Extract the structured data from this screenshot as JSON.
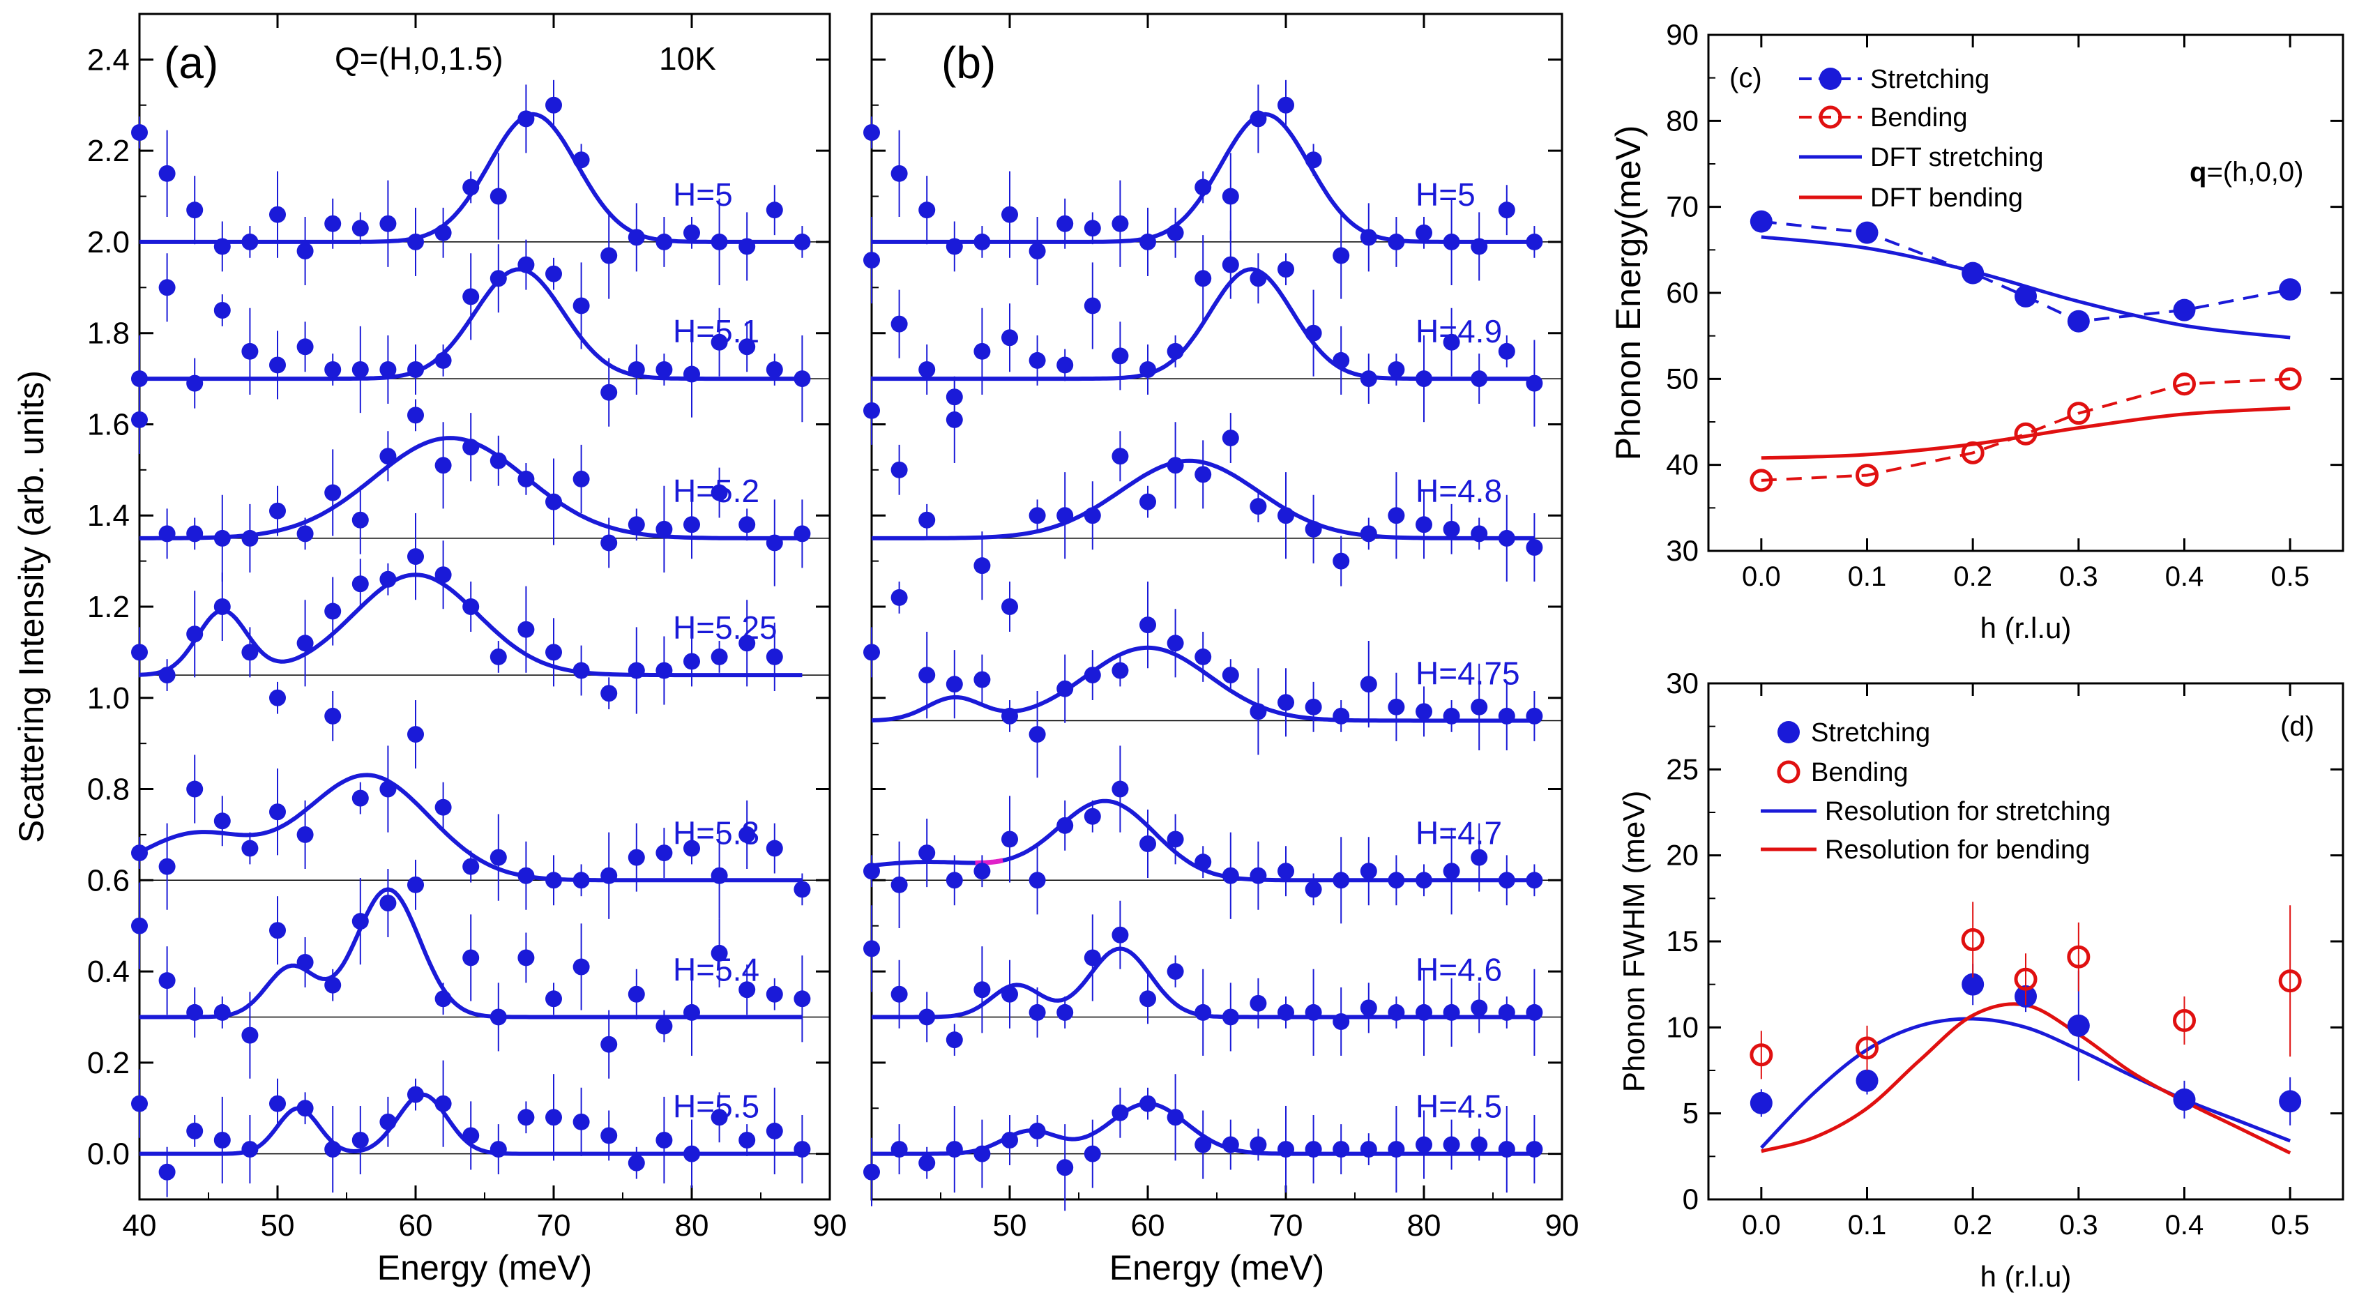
{
  "chart_data": [
    {
      "panel": "(a)",
      "type": "scatter",
      "title": "Q=(H,0,1.5)",
      "temperature": "10K",
      "xlabel": "Energy (meV)",
      "ylabel": "Scattering Intensity (arb. units)",
      "xlim": [
        40,
        90
      ],
      "ylim": [
        -0.1,
        2.5
      ],
      "xticks": [
        "40",
        "50",
        "60",
        "70",
        "80",
        "90"
      ],
      "yticks": [
        "0.0",
        "0.2",
        "0.4",
        "0.6",
        "0.8",
        "1.0",
        "1.2",
        "1.4",
        "1.6",
        "1.8",
        "2.0",
        "2.2",
        "2.4"
      ],
      "x": [
        40,
        42,
        44,
        46,
        48,
        50,
        52,
        54,
        56,
        58,
        60,
        62,
        64,
        66,
        68,
        70,
        72,
        74,
        76,
        78,
        80,
        82,
        84,
        86,
        88
      ],
      "series": [
        {
          "name": "H=5",
          "label": "H=5",
          "baseline": 2.0,
          "values": [
            2.24,
            2.15,
            2.07,
            1.99,
            2.0,
            2.06,
            1.98,
            2.04,
            2.03,
            2.04,
            2.0,
            2.02,
            2.12,
            2.1,
            2.27,
            2.3,
            2.18,
            1.97,
            2.01,
            2.0,
            2.02,
            2.0,
            1.99,
            2.07,
            2.0
          ],
          "fit": [
            {
              "center": 68.5,
              "amp": 0.28,
              "sigma": 3.2
            }
          ]
        },
        {
          "name": "H=5.1",
          "label": "H=5.1",
          "baseline": 1.7,
          "values": [
            1.7,
            1.9,
            1.69,
            1.85,
            1.76,
            1.73,
            1.77,
            1.72,
            1.72,
            1.72,
            1.72,
            1.74,
            1.88,
            1.92,
            1.95,
            1.93,
            1.86,
            1.67,
            1.72,
            1.72,
            1.71,
            1.78,
            1.77,
            1.72,
            1.7
          ],
          "fit": [
            {
              "center": 67.5,
              "amp": 0.24,
              "sigma": 3.2
            }
          ]
        },
        {
          "name": "H=5.2",
          "label": "H=5.2",
          "baseline": 1.35,
          "values": [
            1.61,
            1.36,
            1.36,
            1.35,
            1.35,
            1.41,
            1.36,
            1.45,
            1.39,
            1.53,
            1.62,
            1.51,
            1.55,
            1.52,
            1.48,
            1.43,
            1.48,
            1.34,
            1.38,
            1.37,
            1.38,
            1.45,
            1.38,
            1.34,
            1.36
          ],
          "fit": [
            {
              "center": 62.5,
              "amp": 0.22,
              "sigma": 5.5
            }
          ]
        },
        {
          "name": "H=5.25",
          "label": "H=5.25",
          "baseline": 1.05,
          "values": [
            1.1,
            1.05,
            1.14,
            1.2,
            1.1,
            1.0,
            1.12,
            1.19,
            1.25,
            1.26,
            1.31,
            1.27,
            1.2,
            1.09,
            1.15,
            1.1,
            1.06,
            1.01,
            1.06,
            1.06,
            1.08,
            1.09,
            1.12,
            1.09,
            null
          ],
          "fit": [
            {
              "center": 46,
              "amp": 0.14,
              "sigma": 1.8
            },
            {
              "center": 60,
              "amp": 0.22,
              "sigma": 4.5
            }
          ]
        },
        {
          "name": "H=5.3",
          "label": "H=5.3",
          "baseline": 0.6,
          "values": [
            0.66,
            0.63,
            0.8,
            0.73,
            0.67,
            0.75,
            0.7,
            0.96,
            0.78,
            0.8,
            0.92,
            0.76,
            0.63,
            0.65,
            0.61,
            0.6,
            0.6,
            0.61,
            0.65,
            0.66,
            0.67,
            0.61,
            0.7,
            0.67,
            0.58
          ],
          "fit": [
            {
              "center": 56.5,
              "amp": 0.23,
              "sigma": 4.5
            },
            {
              "center": 44,
              "amp": 0.1,
              "sigma": 4
            }
          ]
        },
        {
          "name": "H=5.4",
          "label": "H=5.4",
          "baseline": 0.3,
          "values": [
            0.5,
            0.38,
            0.31,
            0.31,
            0.26,
            0.49,
            0.42,
            0.37,
            0.51,
            0.55,
            0.59,
            0.34,
            0.43,
            0.3,
            0.43,
            0.34,
            0.41,
            0.24,
            0.35,
            0.28,
            0.31,
            0.44,
            0.36,
            0.35,
            0.34
          ],
          "fit": [
            {
              "center": 51,
              "amp": 0.11,
              "sigma": 1.8
            },
            {
              "center": 58,
              "amp": 0.28,
              "sigma": 2.3
            }
          ]
        },
        {
          "name": "H=5.5",
          "label": "H=5.5",
          "baseline": 0.0,
          "values": [
            0.11,
            -0.04,
            0.05,
            0.03,
            0.01,
            0.11,
            0.1,
            0.01,
            0.03,
            0.07,
            0.13,
            0.11,
            0.04,
            0.01,
            0.08,
            0.08,
            0.07,
            0.04,
            -0.02,
            0.03,
            0.0,
            0.08,
            0.03,
            0.05,
            0.01
          ],
          "fit": [
            {
              "center": 51.5,
              "amp": 0.1,
              "sigma": 1.5
            },
            {
              "center": 60.5,
              "amp": 0.13,
              "sigma": 1.8
            }
          ]
        }
      ]
    },
    {
      "panel": "(b)",
      "type": "scatter",
      "xlabel": "Energy (meV)",
      "xlim": [
        40,
        90
      ],
      "ylim": [
        -0.1,
        2.5
      ],
      "xticks": [
        "50",
        "60",
        "70",
        "80",
        "90"
      ],
      "x": [
        40,
        42,
        44,
        46,
        48,
        50,
        52,
        54,
        56,
        58,
        60,
        62,
        64,
        66,
        68,
        70,
        72,
        74,
        76,
        78,
        80,
        82,
        84,
        86,
        88
      ],
      "series": [
        {
          "name": "H=5",
          "label": "H=5",
          "baseline": 2.0,
          "values": [
            2.24,
            2.15,
            2.07,
            1.99,
            2.0,
            2.06,
            1.98,
            2.04,
            2.03,
            2.04,
            2.0,
            2.02,
            2.12,
            2.1,
            2.27,
            2.3,
            2.18,
            1.97,
            2.01,
            2.0,
            2.02,
            2.0,
            1.99,
            2.07,
            2.0
          ],
          "fit": [
            {
              "center": 68.5,
              "amp": 0.28,
              "sigma": 3.2
            }
          ]
        },
        {
          "name": "H=4.9",
          "label": "H=4.9",
          "baseline": 1.7,
          "values": [
            1.96,
            1.82,
            1.72,
            1.66,
            1.76,
            1.79,
            1.74,
            1.73,
            1.86,
            1.75,
            1.72,
            1.76,
            1.92,
            1.95,
            1.92,
            1.94,
            1.8,
            1.74,
            1.7,
            1.72,
            1.7,
            1.78,
            1.7,
            1.76,
            1.69
          ],
          "fit": [
            {
              "center": 67.5,
              "amp": 0.24,
              "sigma": 3.0
            }
          ]
        },
        {
          "name": "H=4.8",
          "label": "H=4.8",
          "baseline": 1.35,
          "values": [
            1.63,
            1.5,
            1.39,
            1.61,
            1.29,
            1.2,
            1.4,
            1.4,
            1.4,
            1.53,
            1.43,
            1.51,
            1.49,
            1.57,
            1.42,
            1.4,
            1.37,
            1.3,
            1.36,
            1.4,
            1.38,
            1.37,
            1.36,
            1.35,
            1.33
          ],
          "fit": [
            {
              "center": 63,
              "amp": 0.17,
              "sigma": 5.0
            }
          ]
        },
        {
          "name": "H=4.75",
          "label": "H=4.75",
          "baseline": 0.95,
          "values": [
            1.1,
            1.22,
            1.05,
            1.03,
            1.04,
            0.96,
            0.92,
            1.02,
            1.05,
            1.06,
            1.16,
            1.12,
            1.09,
            1.05,
            0.97,
            0.99,
            0.98,
            0.96,
            1.03,
            0.98,
            0.97,
            0.96,
            0.98,
            0.96,
            0.96
          ],
          "fit": [
            {
              "center": 46,
              "amp": 0.05,
              "sigma": 2
            },
            {
              "center": 60,
              "amp": 0.16,
              "sigma": 4.5
            }
          ]
        },
        {
          "name": "H=4.7",
          "label": "H=4.7",
          "baseline": 0.6,
          "values": [
            0.62,
            0.59,
            0.66,
            0.6,
            0.62,
            0.69,
            0.6,
            0.72,
            0.74,
            0.8,
            0.68,
            0.69,
            0.64,
            0.61,
            0.61,
            0.62,
            0.58,
            0.6,
            0.62,
            0.6,
            0.6,
            0.62,
            0.65,
            0.6,
            0.6
          ],
          "fit": [
            {
              "center": 57,
              "amp": 0.17,
              "sigma": 3.5
            },
            {
              "center": 44,
              "amp": 0.04,
              "sigma": 6
            }
          ]
        },
        {
          "name": "H=4.6",
          "label": "H=4.6",
          "baseline": 0.3,
          "values": [
            0.45,
            0.35,
            0.3,
            0.25,
            0.36,
            0.35,
            0.31,
            0.31,
            0.43,
            0.48,
            0.34,
            0.4,
            0.31,
            0.3,
            0.33,
            0.31,
            0.31,
            0.29,
            0.32,
            0.31,
            0.31,
            0.31,
            0.32,
            0.31,
            0.31
          ],
          "fit": [
            {
              "center": 50.5,
              "amp": 0.07,
              "sigma": 1.8
            },
            {
              "center": 58,
              "amp": 0.15,
              "sigma": 2.2
            }
          ]
        },
        {
          "name": "H=4.5",
          "label": "H=4.5",
          "baseline": 0.0,
          "values": [
            -0.04,
            0.01,
            -0.02,
            0.01,
            0.0,
            0.03,
            0.05,
            -0.03,
            0.0,
            0.09,
            0.11,
            0.08,
            0.02,
            0.02,
            0.02,
            0.01,
            0.01,
            0.01,
            0.01,
            0.01,
            0.02,
            0.02,
            0.02,
            0.01,
            0.01
          ],
          "fit": [
            {
              "center": 51.5,
              "amp": 0.05,
              "sigma": 2
            },
            {
              "center": 60,
              "amp": 0.11,
              "sigma": 2.8
            }
          ]
        }
      ]
    },
    {
      "panel": "(c)",
      "type": "line",
      "xlabel": "h (r.l.u)",
      "ylabel": "Phonon Energy(meV)",
      "annotation": {
        "bold": "q",
        "rest": "=(h,0,0)"
      },
      "xlim": [
        -0.05,
        0.55
      ],
      "ylim": [
        30,
        90
      ],
      "xticks": [
        "0.0",
        "0.1",
        "0.2",
        "0.3",
        "0.4",
        "0.5"
      ],
      "yticks": [
        "30",
        "40",
        "50",
        "60",
        "70",
        "80",
        "90"
      ],
      "x": [
        0.0,
        0.1,
        0.2,
        0.25,
        0.3,
        0.4,
        0.5
      ],
      "series": [
        {
          "name": "Stretching",
          "color": "#1a1ad8",
          "marker": "filled",
          "values": [
            68.3,
            67.0,
            62.3,
            59.6,
            56.7,
            58.0,
            60.4
          ]
        },
        {
          "name": "Bending",
          "color": "#e01010",
          "marker": "open",
          "values": [
            38.2,
            38.8,
            41.4,
            43.6,
            46.0,
            49.4,
            50.0
          ]
        },
        {
          "name": "DFT stretching",
          "color": "#1a1ad8",
          "marker": "none",
          "x": [
            0.0,
            0.1,
            0.2,
            0.3,
            0.4,
            0.5
          ],
          "values": [
            66.5,
            65.2,
            62.5,
            59.0,
            56.2,
            54.8
          ]
        },
        {
          "name": "DFT bending",
          "color": "#e01010",
          "marker": "none",
          "x": [
            0.0,
            0.1,
            0.2,
            0.3,
            0.4,
            0.5
          ],
          "values": [
            40.8,
            41.2,
            42.4,
            44.3,
            45.9,
            46.6
          ]
        }
      ],
      "legend": [
        "Stretching",
        "Bending",
        "DFT stretching",
        "DFT bending"
      ]
    },
    {
      "panel": "(d)",
      "type": "scatter",
      "xlabel": "h (r.l.u)",
      "ylabel": "Phonon FWHM (meV)",
      "xlim": [
        -0.05,
        0.55
      ],
      "ylim": [
        0,
        30
      ],
      "xticks": [
        "0.0",
        "0.1",
        "0.2",
        "0.3",
        "0.4",
        "0.5"
      ],
      "yticks": [
        "0",
        "5",
        "10",
        "15",
        "20",
        "25",
        "30"
      ],
      "x": [
        0.0,
        0.1,
        0.2,
        0.25,
        0.3,
        0.4,
        0.5
      ],
      "series": [
        {
          "name": "Stretching",
          "color": "#1a1ad8",
          "marker": "filled",
          "values": [
            5.6,
            6.9,
            12.5,
            11.8,
            10.1,
            5.8,
            5.7
          ]
        },
        {
          "name": "Bending",
          "color": "#e01010",
          "marker": "open",
          "values": [
            8.4,
            8.8,
            15.1,
            12.8,
            14.1,
            10.4,
            12.7
          ]
        },
        {
          "name": "Resolution for stretching",
          "color": "#1a1ad8",
          "marker": "none",
          "x": [
            0.0,
            0.05,
            0.1,
            0.15,
            0.2,
            0.25,
            0.3,
            0.35,
            0.4,
            0.45,
            0.5
          ],
          "values": [
            3.0,
            6.2,
            8.7,
            10.1,
            10.5,
            10.0,
            8.7,
            7.2,
            5.8,
            4.6,
            3.4
          ]
        },
        {
          "name": "Resolution for bending",
          "color": "#e01010",
          "marker": "none",
          "x": [
            0.0,
            0.05,
            0.1,
            0.15,
            0.2,
            0.25,
            0.3,
            0.35,
            0.4,
            0.45,
            0.5
          ],
          "values": [
            2.8,
            3.6,
            5.3,
            8.1,
            10.7,
            11.3,
            9.6,
            7.4,
            5.7,
            4.2,
            2.7
          ]
        }
      ],
      "legend": [
        "Stretching",
        "Bending",
        "Resolution for stretching",
        "Resolution for bending"
      ]
    }
  ]
}
